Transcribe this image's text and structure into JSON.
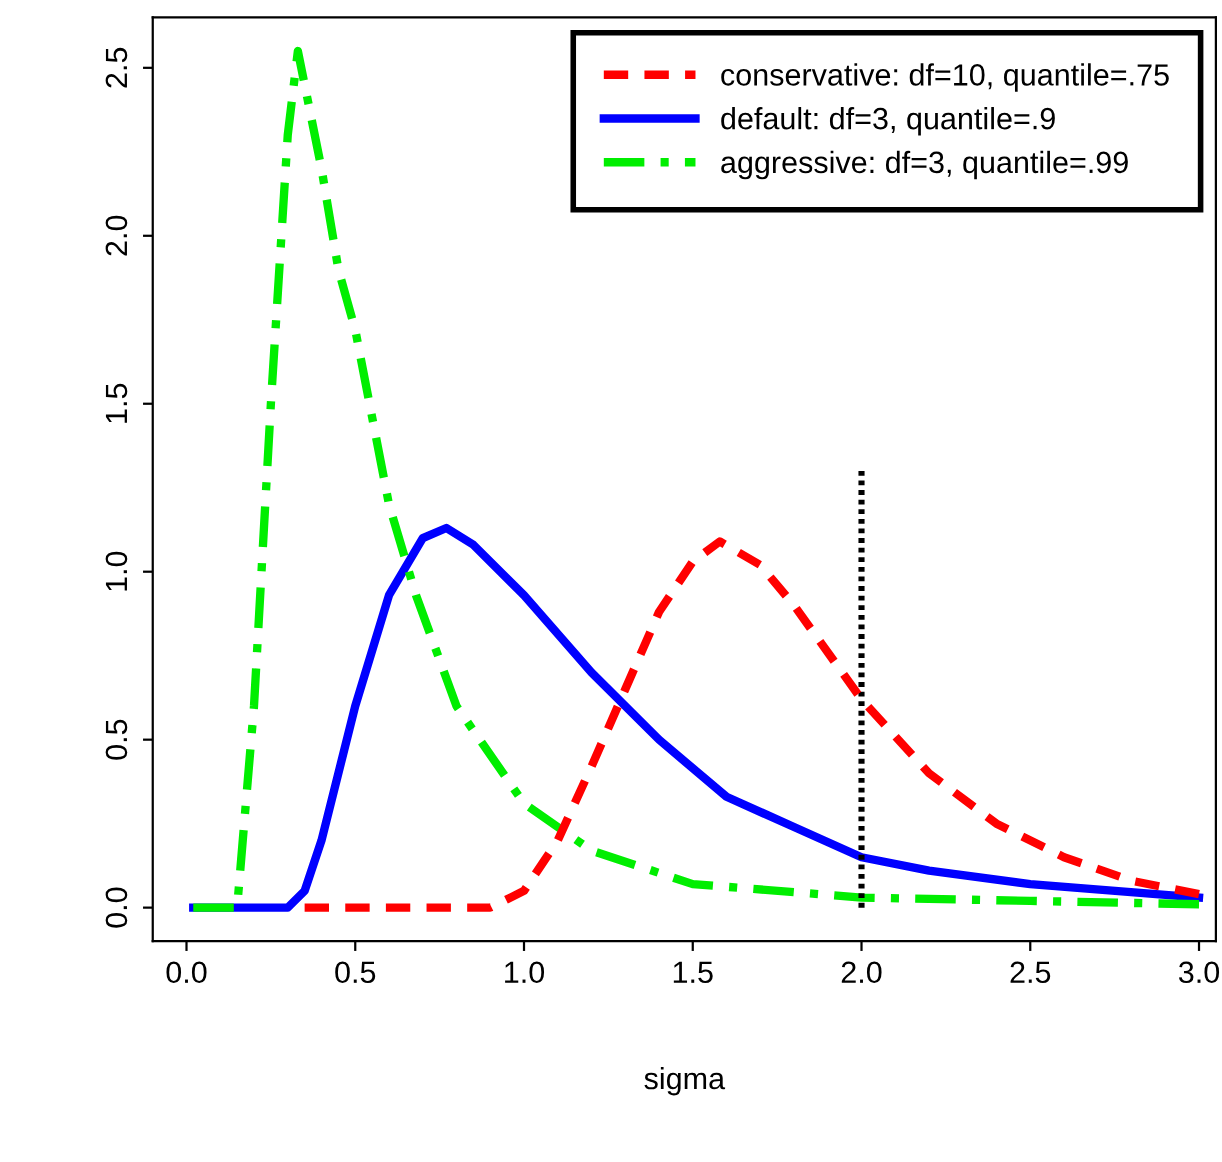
{
  "chart_data": {
    "type": "line",
    "xlabel": "sigma",
    "xlim": [
      -0.1,
      3.05
    ],
    "ylim": [
      -0.1,
      2.65
    ],
    "xticks": [
      {
        "value": 0,
        "label": "0.0"
      },
      0.5,
      {
        "value": 1,
        "label": "1.0"
      },
      1.5,
      {
        "value": 2,
        "label": "2.0"
      },
      2.5,
      {
        "value": 3,
        "label": "3.0"
      }
    ],
    "yticks": [
      {
        "value": 0,
        "label": "0.0"
      },
      0.5,
      {
        "value": 1,
        "label": "1.0"
      },
      1.5,
      {
        "value": 2,
        "label": "2.0"
      },
      2.5
    ],
    "grid": false,
    "legend": "top right",
    "marker": "none",
    "series": [
      {
        "name": "conservative: df=10, quantile=.75",
        "color": "#ff0000",
        "line_style": "dashed",
        "x": [
          0.35,
          0.5,
          0.9,
          1.0,
          1.1,
          1.2,
          1.3,
          1.4,
          1.5,
          1.58,
          1.7,
          1.8,
          2.0,
          2.2,
          2.4,
          2.6,
          2.8,
          3.0
        ],
        "values": [
          0,
          0,
          0,
          0.05,
          0.2,
          0.42,
          0.65,
          0.88,
          1.03,
          1.09,
          1.02,
          0.9,
          0.62,
          0.4,
          0.25,
          0.15,
          0.08,
          0.04
        ]
      },
      {
        "name": "default: df=3, quantile=.9",
        "color": "#0000ff",
        "line_style": "solid",
        "x": [
          0.02,
          0.3,
          0.35,
          0.4,
          0.5,
          0.6,
          0.7,
          0.77,
          0.85,
          1.0,
          1.2,
          1.4,
          1.6,
          1.8,
          2.0,
          2.2,
          2.5,
          3.0
        ],
        "values": [
          0,
          0,
          0.05,
          0.2,
          0.6,
          0.93,
          1.1,
          1.13,
          1.08,
          0.93,
          0.7,
          0.5,
          0.33,
          0.24,
          0.15,
          0.11,
          0.07,
          0.03
        ]
      },
      {
        "name": "aggressive: df=3, quantile=.99",
        "color": "#00ee00",
        "line_style": "dashdot",
        "x": [
          0.02,
          0.15,
          0.2,
          0.25,
          0.3,
          0.33,
          0.4,
          0.45,
          0.5,
          0.6,
          0.68,
          0.8,
          1.0,
          1.2,
          1.5,
          2.0,
          2.5,
          3.0
        ],
        "values": [
          0,
          0,
          0.6,
          1.5,
          2.3,
          2.55,
          2.2,
          1.9,
          1.72,
          1.2,
          0.93,
          0.6,
          0.31,
          0.17,
          0.07,
          0.03,
          0.02,
          0.01
        ]
      },
      {
        "color": "#000000",
        "line_style": "dotted",
        "x": [
          2.0,
          2.0
        ],
        "values": [
          0,
          1.3
        ]
      }
    ]
  }
}
